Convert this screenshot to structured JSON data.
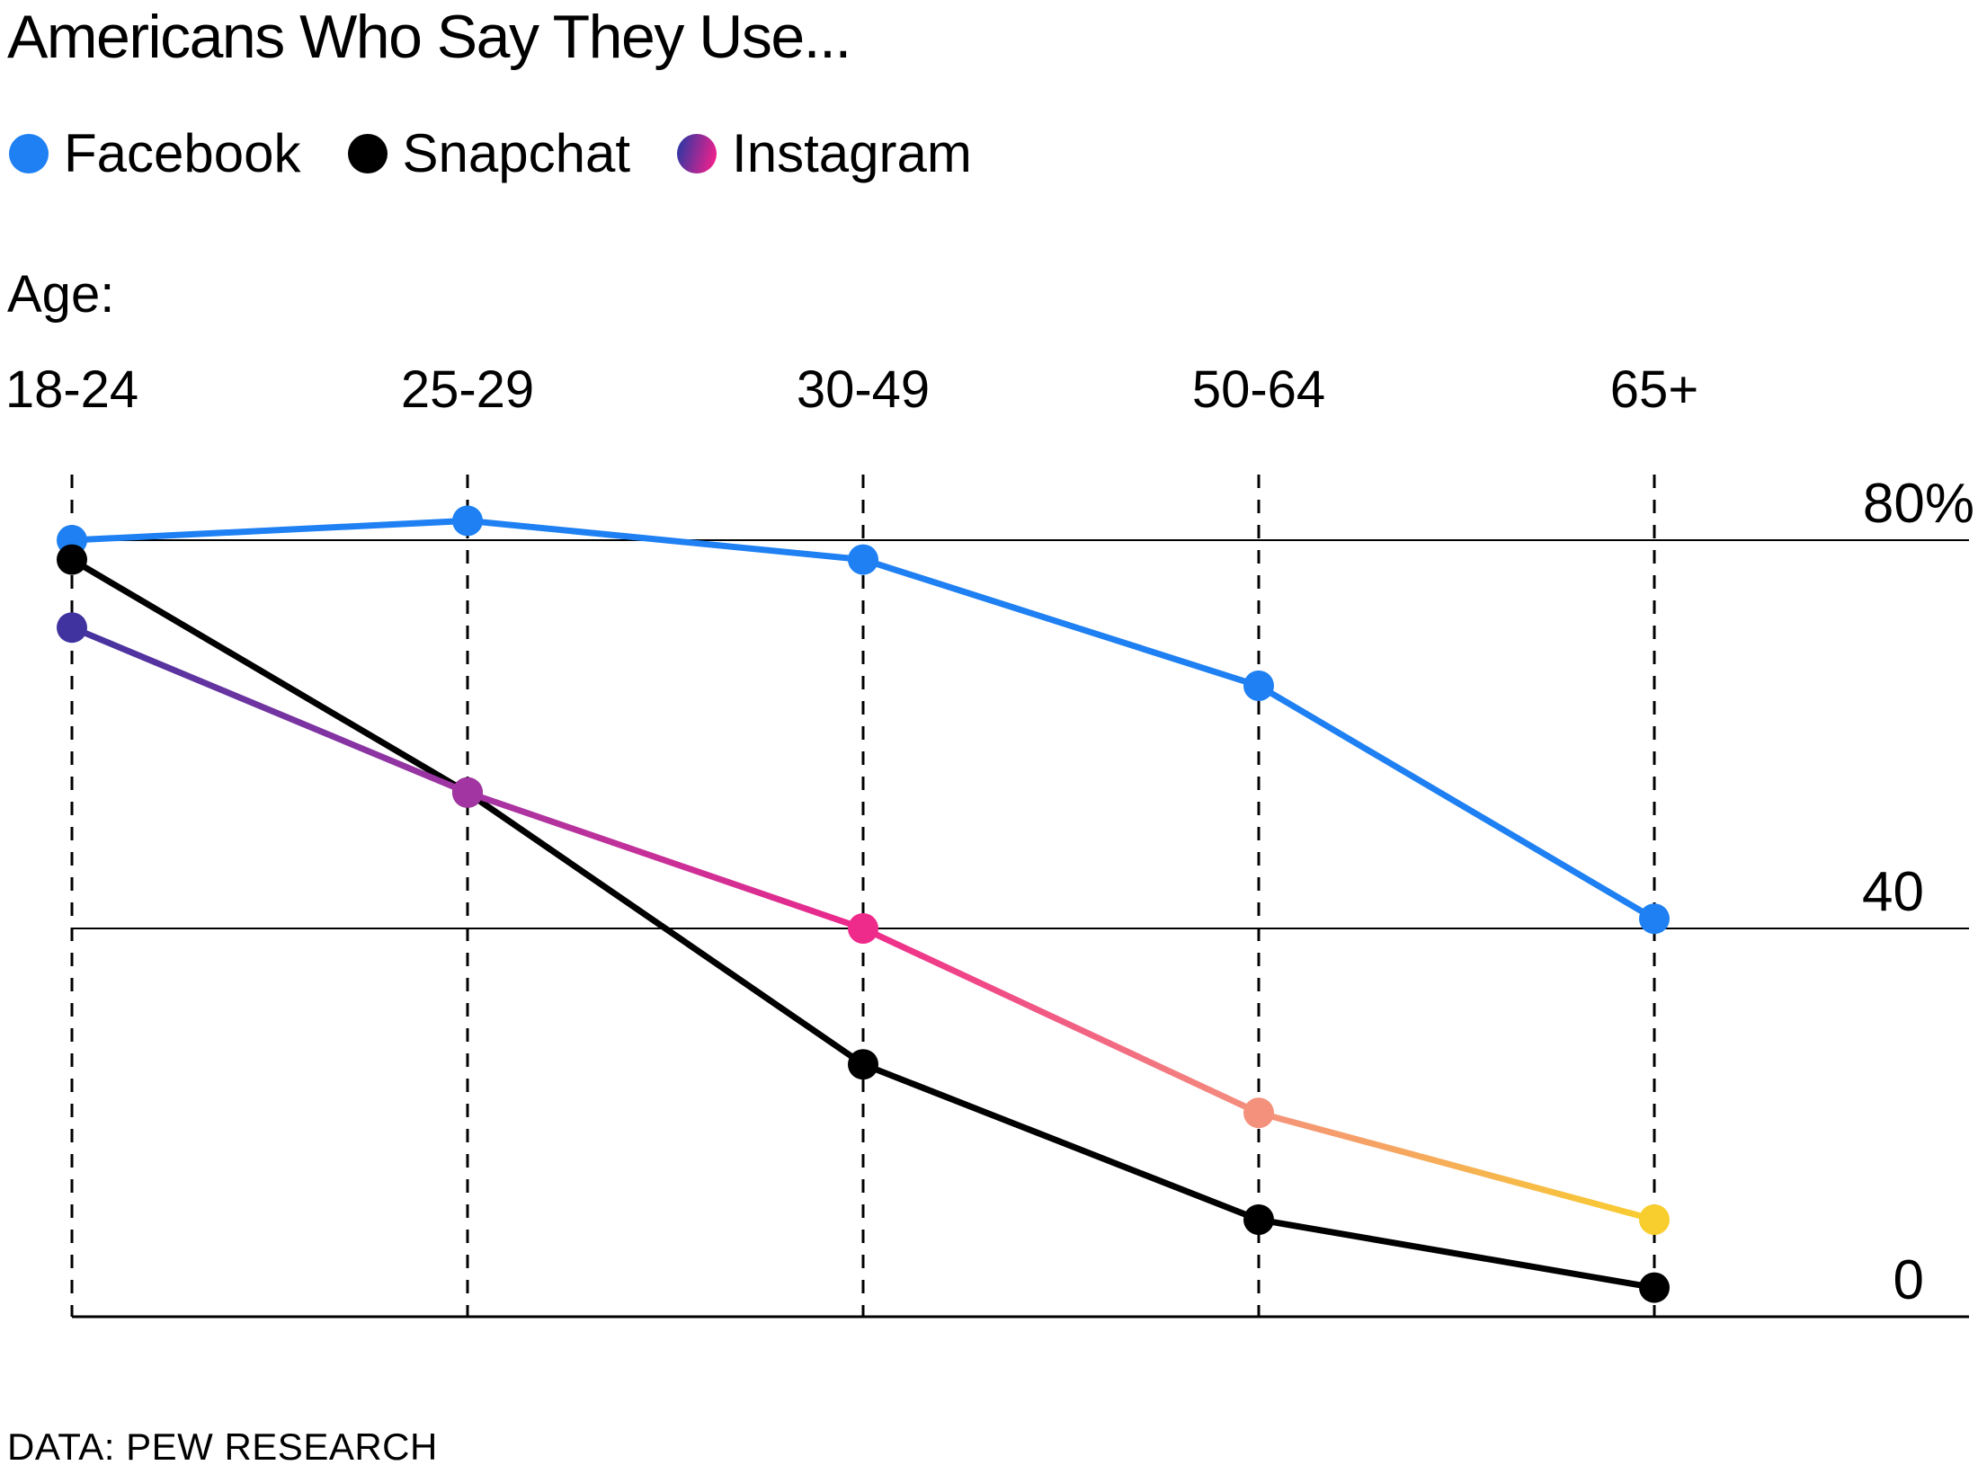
{
  "title": "Americans Who Say They Use...",
  "legend": [
    {
      "name": "Facebook",
      "color": "#1e80f2"
    },
    {
      "name": "Snapchat",
      "color": "#000000"
    },
    {
      "name": "Instagram",
      "gradient": [
        "#3a36a2",
        "#e9218d"
      ]
    }
  ],
  "age_axis_label": "Age:",
  "footer": "DATA: PEW RESEARCH",
  "chart_data": {
    "type": "line",
    "title": "Americans Who Say They Use...",
    "xlabel": "Age:",
    "ylabel": "",
    "ylim": [
      0,
      80
    ],
    "legend_position": "top",
    "categories": [
      "18-24",
      "25-29",
      "30-49",
      "50-64",
      "65+"
    ],
    "series": [
      {
        "name": "Facebook",
        "color": "#1e80f2",
        "values": [
          80,
          82,
          78,
          65,
          41
        ]
      },
      {
        "name": "Snapchat",
        "color": "#000000",
        "values": [
          78,
          54,
          26,
          10,
          3
        ]
      },
      {
        "name": "Instagram",
        "point_colors": [
          "#41339f",
          "#a335a3",
          "#ee2a8b",
          "#f4917c",
          "#f8ce2e"
        ],
        "values": [
          71,
          54,
          40,
          21,
          10
        ]
      }
    ],
    "y_gridlines": [
      {
        "label": "80%",
        "value": 80
      },
      {
        "label": "40",
        "value": 40
      },
      {
        "label": "0",
        "value": 0
      }
    ],
    "source": "DATA: PEW RESEARCH"
  }
}
